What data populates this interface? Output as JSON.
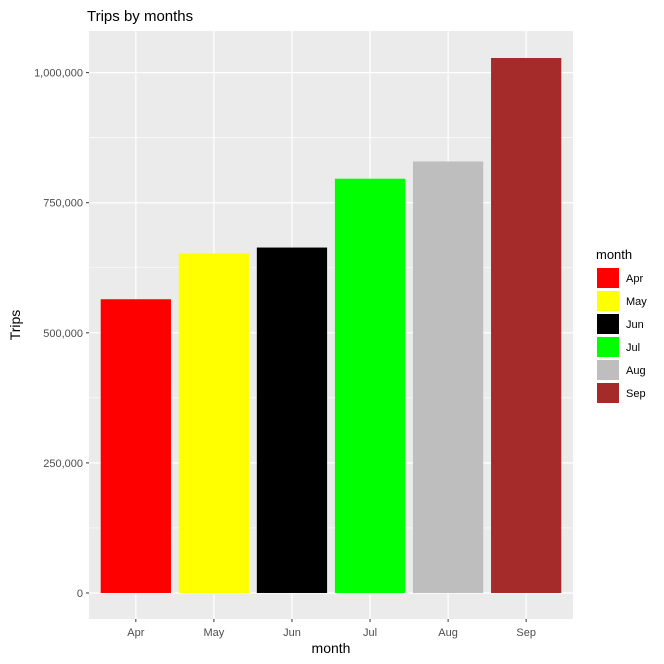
{
  "chart_data": {
    "type": "bar",
    "title": "Trips by months",
    "xlabel": "month",
    "ylabel": "Trips",
    "categories": [
      "Apr",
      "May",
      "Jun",
      "Jul",
      "Aug",
      "Sep"
    ],
    "values": [
      564516,
      652435,
      663844,
      796121,
      829275,
      1028136
    ],
    "colors": [
      "#ff0000",
      "#ffff00",
      "#000000",
      "#00ff00",
      "#bebebe",
      "#a52a2a"
    ],
    "ylim": [
      -50000,
      1080000
    ],
    "yticks": [
      0,
      250000,
      500000,
      750000,
      1000000
    ],
    "ytick_labels": [
      "0",
      "250,000",
      "500,000",
      "750,000",
      "1,000,000"
    ],
    "grid": true,
    "panel_background": "#ebebeb",
    "legend": {
      "title": "month",
      "position": "right",
      "entries": [
        "Apr",
        "May",
        "Jun",
        "Jul",
        "Aug",
        "Sep"
      ]
    }
  }
}
